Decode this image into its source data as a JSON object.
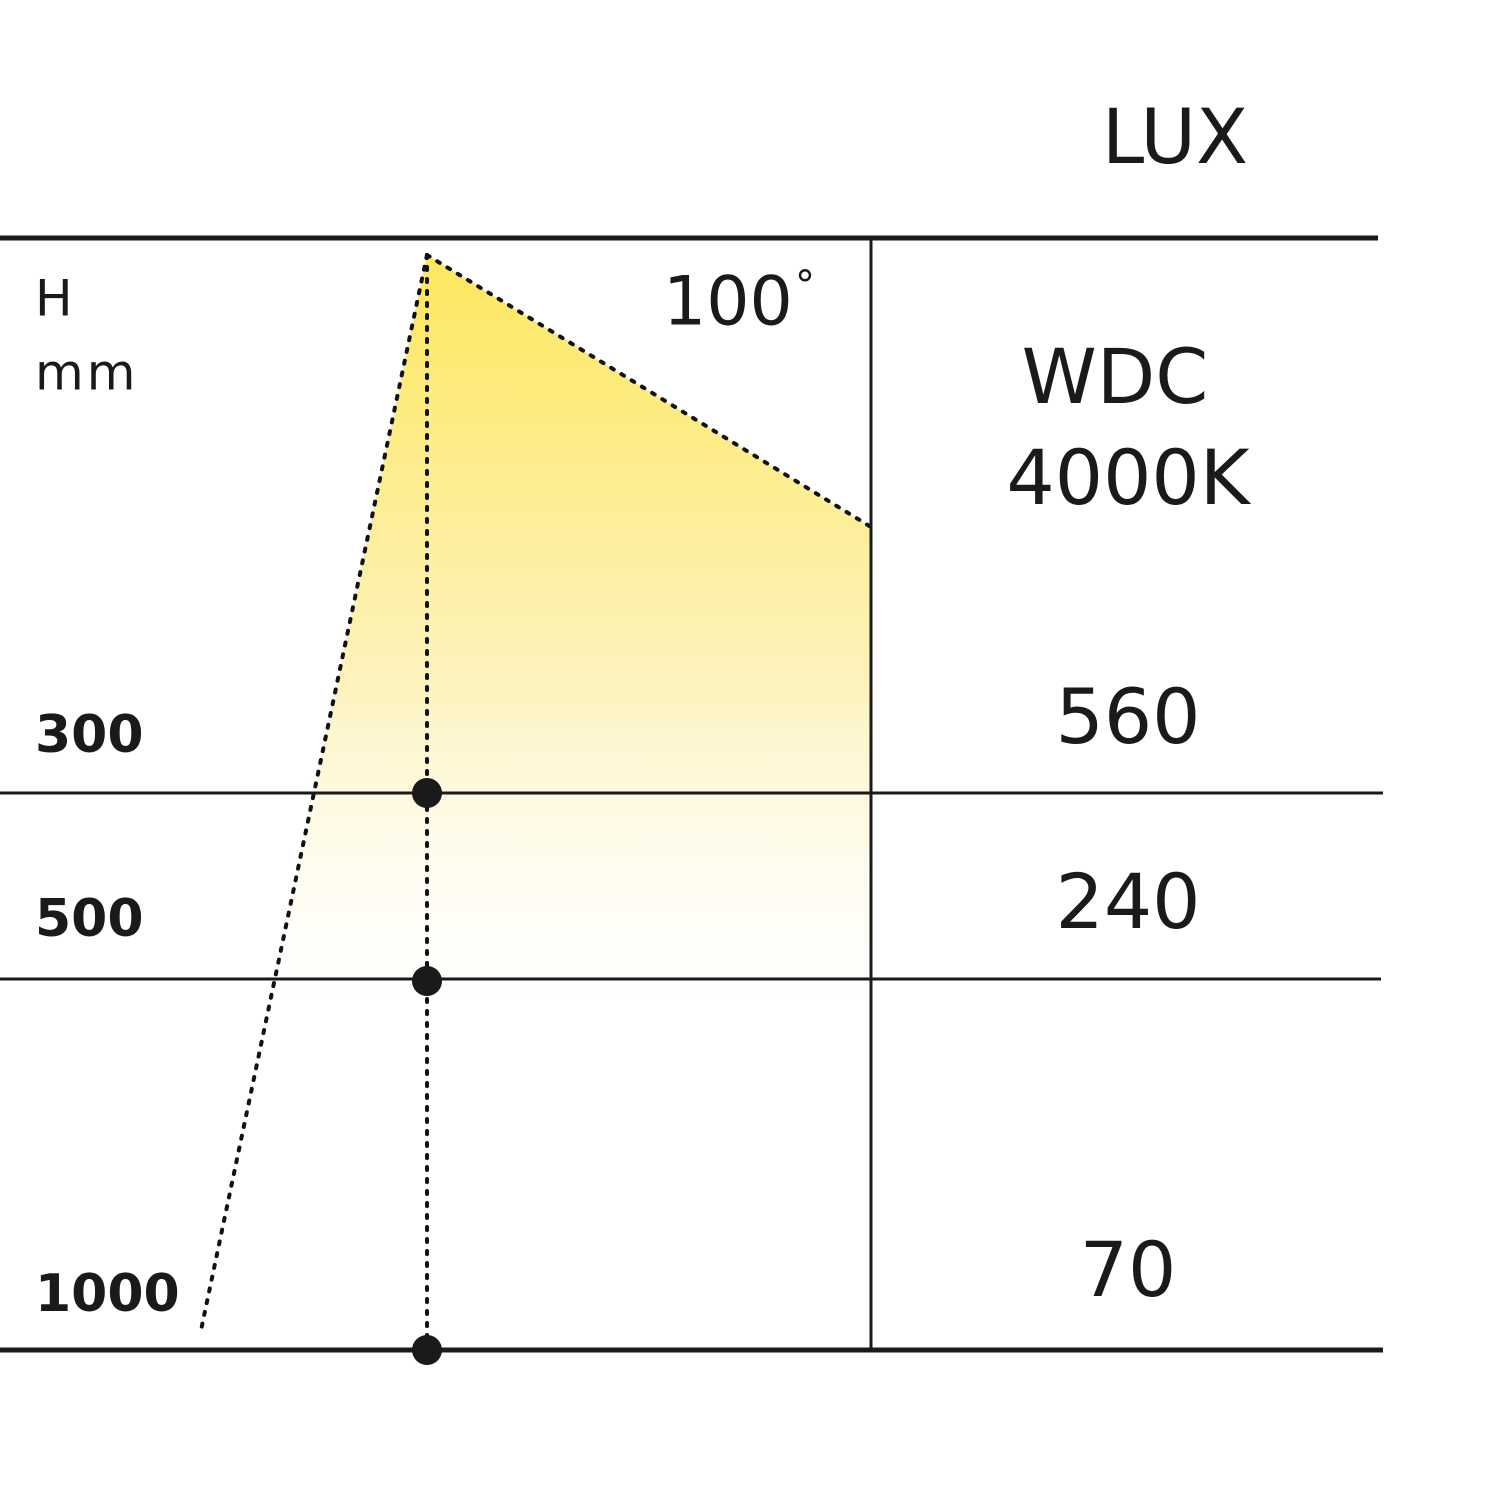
{
  "header": {
    "title": "LUX"
  },
  "axis": {
    "label": "H",
    "unit": "mm"
  },
  "beam": {
    "angle": 100,
    "unit": "°"
  },
  "product": {
    "name": "WDC",
    "color_temperature": "4000K"
  },
  "rows": [
    {
      "height": 300,
      "lux": 560
    },
    {
      "height": 500,
      "lux": 240
    },
    {
      "height": 1000,
      "lux": 70
    }
  ]
}
